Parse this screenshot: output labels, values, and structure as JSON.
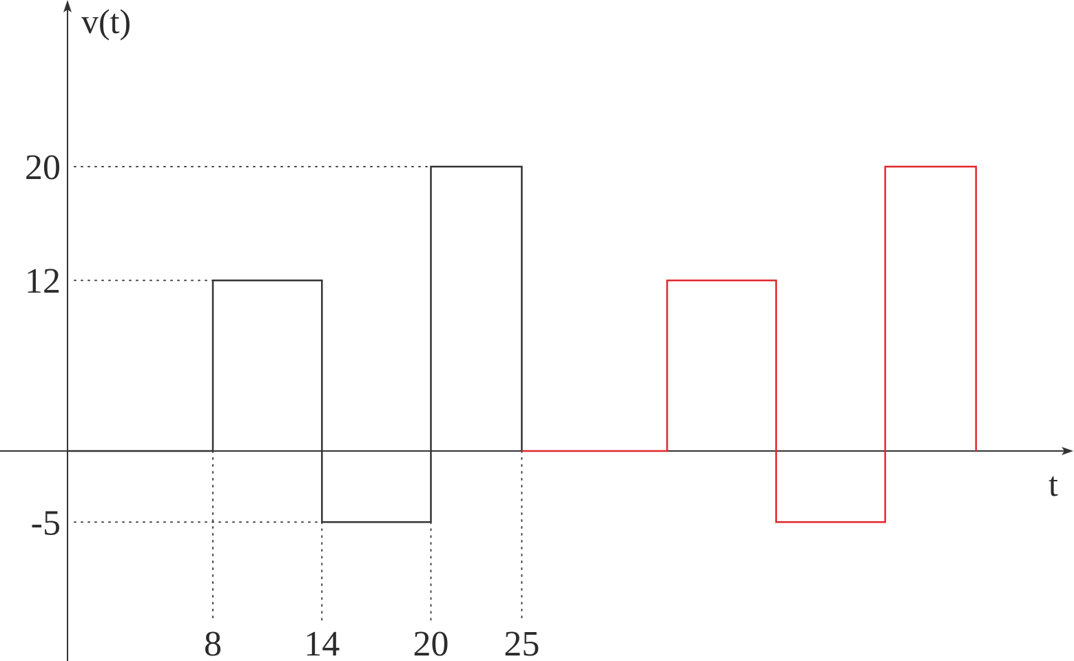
{
  "chart_data": {
    "type": "line",
    "ylabel": "v(t)",
    "xlabel": "t",
    "x_ticks": [
      "8",
      "14",
      "20",
      "25"
    ],
    "y_ticks": [
      "20",
      "12",
      "-5"
    ],
    "grid": false,
    "series": [
      {
        "color": "#333333",
        "step": true,
        "points": [
          [
            0,
            0
          ],
          [
            8,
            0
          ],
          [
            8,
            12
          ],
          [
            14,
            12
          ],
          [
            14,
            -5
          ],
          [
            20,
            -5
          ],
          [
            20,
            20
          ],
          [
            25,
            20
          ],
          [
            25,
            0
          ]
        ]
      },
      {
        "color": "#e0262b",
        "step": true,
        "points": [
          [
            25,
            0
          ],
          [
            33,
            0
          ],
          [
            33,
            12
          ],
          [
            39,
            12
          ],
          [
            39,
            -5
          ],
          [
            45,
            -5
          ],
          [
            45,
            20
          ],
          [
            50,
            20
          ],
          [
            50,
            0
          ]
        ]
      }
    ],
    "guides": [
      {
        "axis": "y",
        "value": 20,
        "to_x": 20
      },
      {
        "axis": "y",
        "value": 12,
        "to_x": 8
      },
      {
        "axis": "y",
        "value": -5,
        "to_x": 14
      },
      {
        "axis": "x",
        "value": 8,
        "from_y": 0
      },
      {
        "axis": "x",
        "value": 14,
        "from_y": -5
      },
      {
        "axis": "x",
        "value": 20,
        "from_y": -5
      },
      {
        "axis": "x",
        "value": 25,
        "from_y": 0
      }
    ]
  }
}
